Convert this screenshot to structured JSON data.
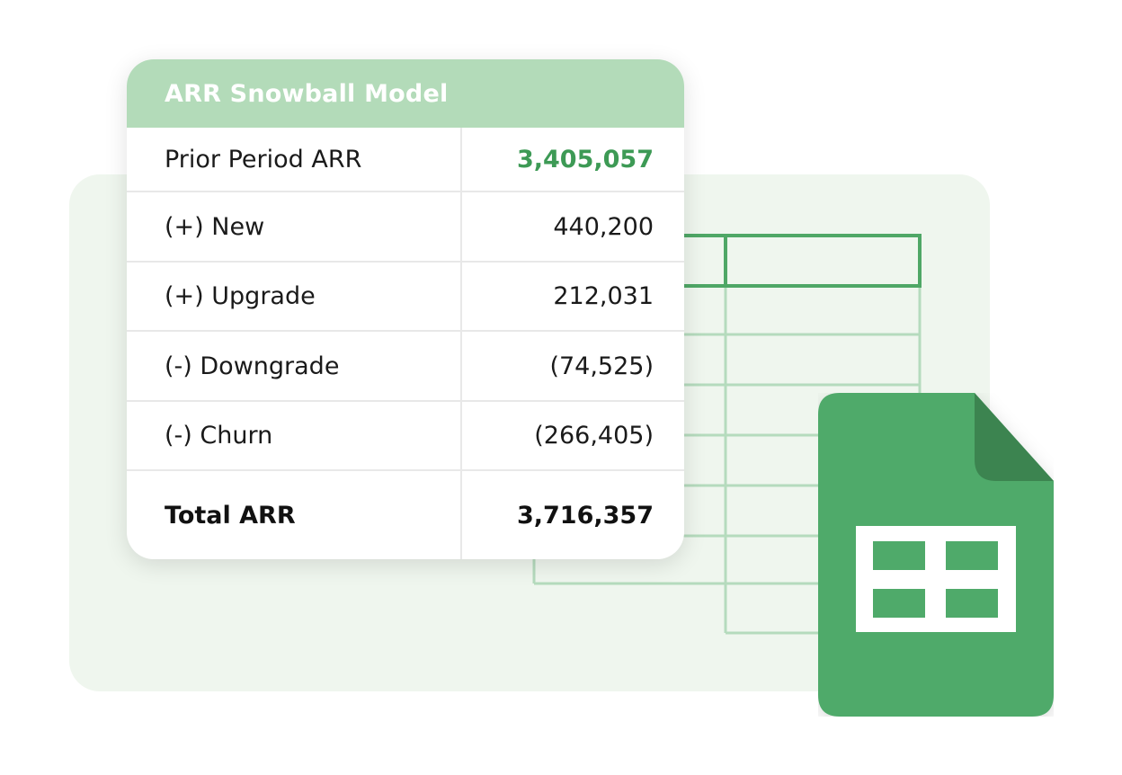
{
  "card": {
    "title": "ARR Snowball Model",
    "rows": [
      {
        "label": "Prior Period ARR",
        "value": "3,405,057"
      },
      {
        "label": "(+) New",
        "value": "440,200"
      },
      {
        "label": "(+) Upgrade",
        "value": "212,031"
      },
      {
        "label": "(-) Downgrade",
        "value": "(74,525)"
      },
      {
        "label": "(-) Churn",
        "value": "(266,405)"
      },
      {
        "label": "Total ARR",
        "value": "3,716,357"
      }
    ]
  },
  "colors": {
    "header_bg": "#b3dbb9",
    "accent_green": "#3d9a55",
    "sheets_green": "#4faa6a",
    "sheets_fold": "#3c8450",
    "panel_bg": "#eff6ee",
    "grid_line": "#b5dbbd",
    "grid_highlight": "#4fa766"
  },
  "icons": {
    "sheets": "google-sheets-icon"
  }
}
